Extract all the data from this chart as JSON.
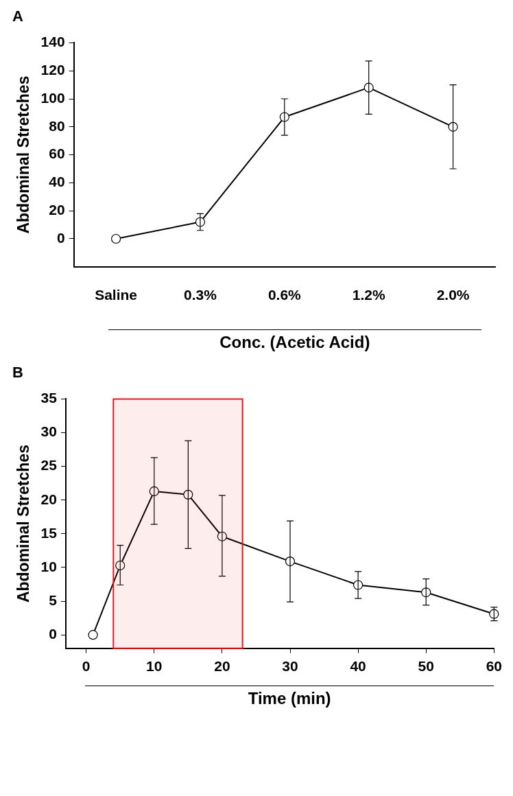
{
  "chart_data": [
    {
      "type": "line",
      "title": "A",
      "ylabel": "Abdominal Stretches",
      "xlabel": "Conc. (Acetic Acid)",
      "categories": [
        "Saline",
        "0.3%",
        "0.6%",
        "1.2%",
        "2.0%"
      ],
      "series": [
        {
          "color": "#000000",
          "values": [
            0,
            12,
            87,
            108,
            80
          ],
          "errors": [
            null,
            6,
            13,
            19,
            30
          ]
        }
      ],
      "ylim": [
        -20,
        140
      ],
      "yticks": [
        0,
        20,
        40,
        60,
        80,
        100,
        120,
        140
      ],
      "grid": false,
      "legend": false,
      "marker": "circle",
      "line_style": "solid"
    },
    {
      "type": "line",
      "title": "B",
      "ylabel": "Abdominal Stretches",
      "xlabel": "Time (min)",
      "x": [
        1,
        5,
        10,
        15,
        20,
        30,
        40,
        50,
        60
      ],
      "series": [
        {
          "color": "#000000",
          "values": [
            0,
            10.3,
            21.3,
            20.8,
            14.6,
            10.9,
            7.4,
            6.3,
            3.1
          ],
          "errors": [
            null,
            [
              7.4,
              13.3
            ],
            [
              16.4,
              26.3
            ],
            [
              12.8,
              28.8
            ],
            [
              8.7,
              20.7
            ],
            [
              4.9,
              16.9
            ],
            [
              5.4,
              9.4
            ],
            [
              4.4,
              8.3
            ],
            [
              2.1,
              4.1
            ]
          ]
        }
      ],
      "xlim": [
        -3,
        60
      ],
      "xticks": [
        0,
        10,
        20,
        30,
        40,
        50,
        60
      ],
      "ylim": [
        -2,
        35
      ],
      "yticks": [
        0,
        5,
        10,
        15,
        20,
        25,
        30,
        35
      ],
      "bands": [
        {
          "axis": "x",
          "from": 4,
          "to": 23,
          "color": "#e8171b"
        }
      ],
      "grid": false,
      "legend": false,
      "marker": "circle",
      "line_style": "solid"
    }
  ]
}
